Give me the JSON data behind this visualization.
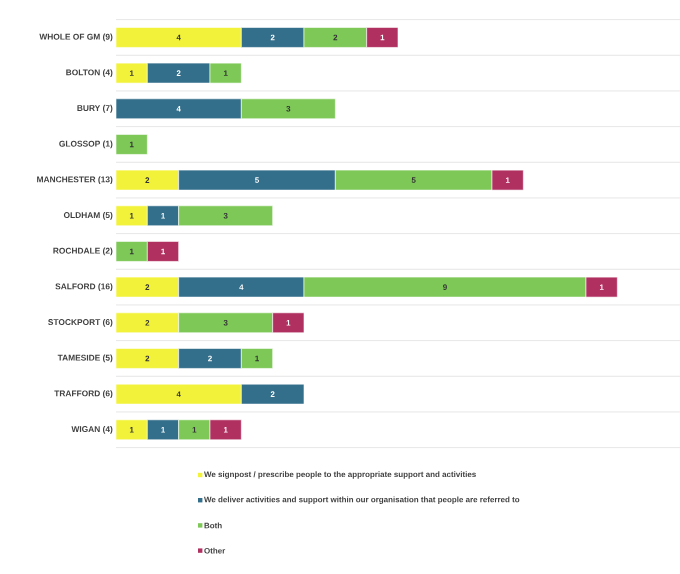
{
  "chart_data": {
    "type": "bar",
    "orientation": "horizontal",
    "stacked": true,
    "data_labels": true,
    "grid": "y",
    "legend": "bottom",
    "tick_labels": "y",
    "xlim": [
      0,
      18
    ],
    "categories": [
      "WHOLE OF GM (9)",
      "BOLTON (4)",
      "BURY (7)",
      "GLOSSOP (1)",
      "MANCHESTER (13)",
      "OLDHAM (5)",
      "ROCHDALE (2)",
      "SALFORD (16)",
      "STOCKPORT (6)",
      "TAMESIDE (5)",
      "TRAFFORD (6)",
      "WIGAN (4)"
    ],
    "series": [
      {
        "name": "We signpost / prescribe people to the appropriate support and activities",
        "color": "#f2f23a",
        "values": [
          4,
          1,
          null,
          null,
          2,
          1,
          null,
          2,
          2,
          2,
          4,
          1
        ]
      },
      {
        "name": "We deliver activities and support within our organisation that people are referred to",
        "color": "#336e8a",
        "values": [
          2,
          2,
          4,
          null,
          5,
          1,
          null,
          4,
          null,
          2,
          2,
          1
        ]
      },
      {
        "name": "Both",
        "color": "#7dc857",
        "values": [
          2,
          1,
          3,
          1,
          5,
          3,
          1,
          9,
          3,
          1,
          null,
          1
        ]
      },
      {
        "name": "Other",
        "color": "#b03060",
        "values": [
          1,
          null,
          null,
          null,
          1,
          null,
          1,
          1,
          1,
          null,
          null,
          1
        ]
      }
    ]
  }
}
